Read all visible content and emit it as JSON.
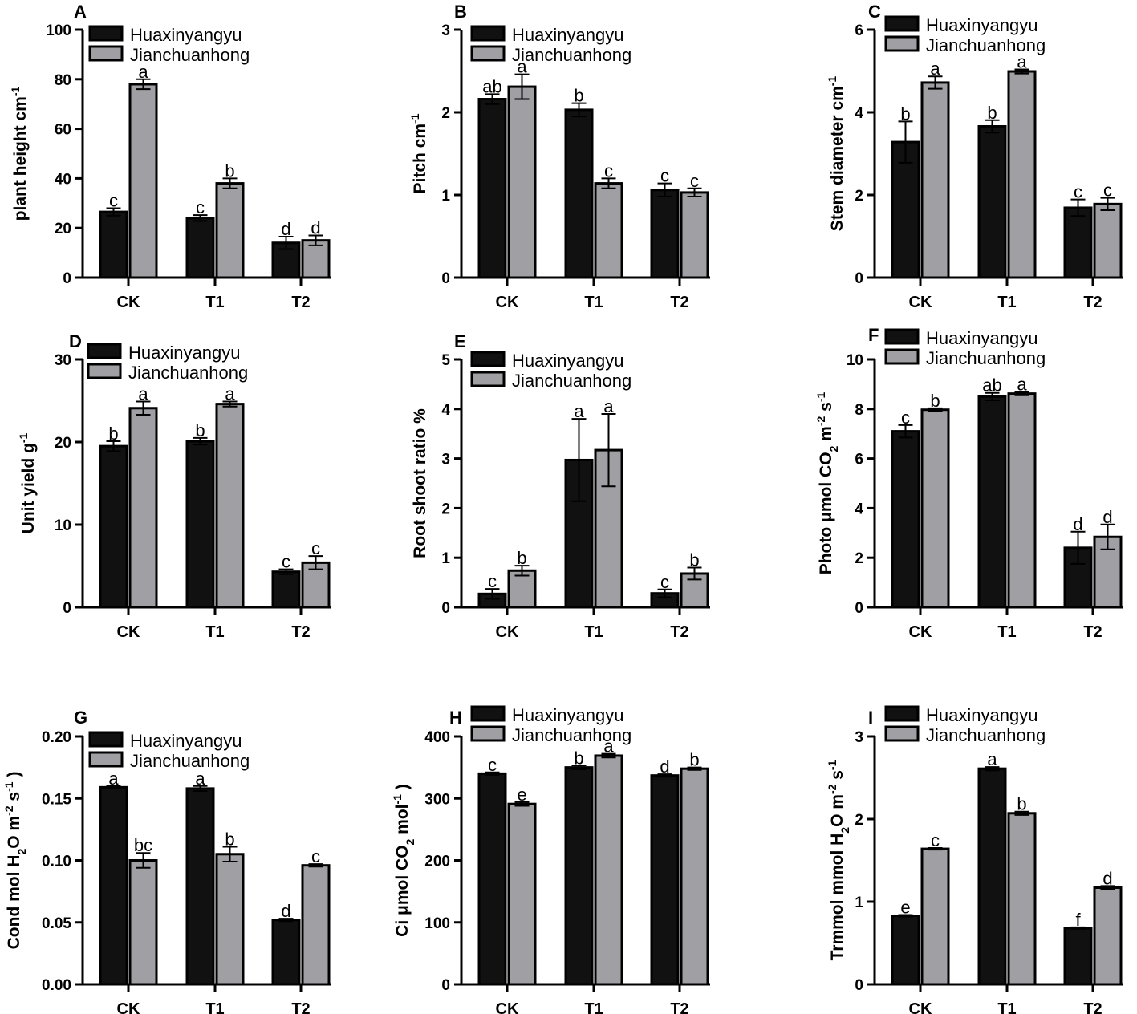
{
  "chart_data": [
    {
      "panel": "A",
      "type": "bar",
      "ylabel": "plant height cm",
      "ylabel_sup": "-1",
      "ylim": [
        0,
        100
      ],
      "yticks": [
        "0",
        "20",
        "40",
        "60",
        "80",
        "100"
      ],
      "categories": [
        "CK",
        "T1",
        "T2"
      ],
      "legend": [
        "Huaxinyangyu",
        "Jianchuanhong"
      ],
      "series": [
        {
          "name": "Huaxinyangyu",
          "values": [
            26.5,
            24,
            14
          ],
          "errors": [
            1.5,
            1.2,
            2.5
          ],
          "letters": [
            "c",
            "c",
            "d"
          ]
        },
        {
          "name": "Jianchuanhong",
          "values": [
            78,
            38,
            15
          ],
          "errors": [
            2,
            2,
            2
          ],
          "letters": [
            "a",
            "b",
            "d"
          ]
        }
      ]
    },
    {
      "panel": "B",
      "type": "bar",
      "ylabel": "Pitch cm",
      "ylabel_sup": "-1",
      "ylim": [
        0,
        3
      ],
      "yticks": [
        "0",
        "1",
        "2",
        "3"
      ],
      "categories": [
        "CK",
        "T1",
        "T2"
      ],
      "legend": [
        "Huaxinyangyu",
        "Jianchuanhong"
      ],
      "series": [
        {
          "name": "Huaxinyangyu",
          "values": [
            2.16,
            2.03,
            1.06
          ],
          "errors": [
            0.06,
            0.08,
            0.08
          ],
          "letters": [
            "ab",
            "b",
            "c"
          ]
        },
        {
          "name": "Jianchuanhong",
          "values": [
            2.31,
            1.14,
            1.03
          ],
          "errors": [
            0.15,
            0.06,
            0.05
          ],
          "letters": [
            "a",
            "c",
            "c"
          ]
        }
      ]
    },
    {
      "panel": "C",
      "type": "bar",
      "ylabel": "Stem diameter cm",
      "ylabel_sup": "-1",
      "ylim": [
        0,
        6
      ],
      "yticks": [
        "0",
        "2",
        "4",
        "6"
      ],
      "categories": [
        "CK",
        "T1",
        "T2"
      ],
      "legend": [
        "Huaxinyangyu",
        "Jianchuanhong"
      ],
      "series": [
        {
          "name": "Huaxinyangyu",
          "values": [
            3.28,
            3.66,
            1.69
          ],
          "errors": [
            0.5,
            0.15,
            0.2
          ],
          "letters": [
            "b",
            "b",
            "c"
          ]
        },
        {
          "name": "Jianchuanhong",
          "values": [
            4.72,
            4.99,
            1.78
          ],
          "errors": [
            0.15,
            0.05,
            0.15
          ],
          "letters": [
            "a",
            "a",
            "c"
          ]
        }
      ]
    },
    {
      "panel": "D",
      "type": "bar",
      "ylabel": "Unit yield g",
      "ylabel_sup": "-1",
      "ylim": [
        0,
        30
      ],
      "yticks": [
        "0",
        "10",
        "20",
        "30"
      ],
      "categories": [
        "CK",
        "T1",
        "T2"
      ],
      "legend": [
        "Huaxinyangyu",
        "Jianchuanhong"
      ],
      "series": [
        {
          "name": "Huaxinyangyu",
          "values": [
            19.5,
            20.1,
            4.3
          ],
          "errors": [
            0.6,
            0.4,
            0.3
          ],
          "letters": [
            "b",
            "b",
            "c"
          ]
        },
        {
          "name": "Jianchuanhong",
          "values": [
            24.1,
            24.6,
            5.4
          ],
          "errors": [
            0.8,
            0.3,
            0.8
          ],
          "letters": [
            "a",
            "a",
            "c"
          ]
        }
      ]
    },
    {
      "panel": "E",
      "type": "bar",
      "ylabel": "Root shoot ratio %",
      "ylabel_sup": "",
      "ylim": [
        0,
        5
      ],
      "yticks": [
        "0",
        "1",
        "2",
        "3",
        "4",
        "5"
      ],
      "categories": [
        "CK",
        "T1",
        "T2"
      ],
      "legend": [
        "Huaxinyangyu",
        "Jianchuanhong"
      ],
      "series": [
        {
          "name": "Huaxinyangyu",
          "values": [
            0.27,
            2.97,
            0.28
          ],
          "errors": [
            0.1,
            0.83,
            0.08
          ],
          "letters": [
            "c",
            "a",
            "c"
          ]
        },
        {
          "name": "Jianchuanhong",
          "values": [
            0.74,
            3.17,
            0.68
          ],
          "errors": [
            0.1,
            0.73,
            0.12
          ],
          "letters": [
            "b",
            "a",
            "b"
          ]
        }
      ]
    },
    {
      "panel": "F",
      "type": "bar",
      "ylabel": "Photo μmol CO",
      "ylabel_sub": "2",
      "ylabel_tail": " m",
      "ylabel_sup2": "-2",
      "ylabel_tail2": " s",
      "ylabel_sup3": "-1",
      "ylim": [
        0,
        10
      ],
      "yticks": [
        "0",
        "2",
        "4",
        "6",
        "8",
        "10"
      ],
      "categories": [
        "CK",
        "T1",
        "T2"
      ],
      "legend": [
        "Huaxinyangyu",
        "Jianchuanhong"
      ],
      "series": [
        {
          "name": "Huaxinyangyu",
          "values": [
            7.1,
            8.5,
            2.4
          ],
          "errors": [
            0.25,
            0.15,
            0.65
          ],
          "letters": [
            "c",
            "ab",
            "d"
          ]
        },
        {
          "name": "Jianchuanhong",
          "values": [
            7.97,
            8.62,
            2.84
          ],
          "errors": [
            0.06,
            0.07,
            0.5
          ],
          "letters": [
            "b",
            "a",
            "d"
          ]
        }
      ]
    },
    {
      "panel": "G",
      "type": "bar",
      "ylabel": "Cond mol H",
      "ylabel_sub": "2",
      "ylabel_tail": "O m",
      "ylabel_sup2": "-2",
      "ylabel_tail2": " s",
      "ylabel_sup3": "-1",
      "ylabel_end": " )",
      "ylim": [
        0,
        0.2
      ],
      "yticks": [
        "0.00",
        "0.05",
        "0.10",
        "0.15",
        "0.20"
      ],
      "categories": [
        "CK",
        "T1",
        "T2"
      ],
      "legend": [
        "Huaxinyangyu",
        "Jianchuanhong"
      ],
      "series": [
        {
          "name": "Huaxinyangyu",
          "values": [
            0.159,
            0.158,
            0.052
          ],
          "errors": [
            0.001,
            0.002,
            0.001
          ],
          "letters": [
            "a",
            "a",
            "d"
          ]
        },
        {
          "name": "Jianchuanhong",
          "values": [
            0.1,
            0.105,
            0.096
          ],
          "errors": [
            0.006,
            0.006,
            0.001
          ],
          "letters": [
            "bc",
            "b",
            "c"
          ]
        }
      ]
    },
    {
      "panel": "H",
      "type": "bar",
      "ylabel": "Ci μmol CO",
      "ylabel_sub": "2",
      "ylabel_tail": " mol",
      "ylabel_sup2": "-1",
      "ylabel_tail2": " )",
      "ylim": [
        0,
        400
      ],
      "yticks": [
        "0",
        "100",
        "200",
        "300",
        "400"
      ],
      "categories": [
        "CK",
        "T1",
        "T2"
      ],
      "legend": [
        "Huaxinyangyu",
        "Jianchuanhong"
      ],
      "series": [
        {
          "name": "Huaxinyangyu",
          "values": [
            340,
            350,
            337
          ],
          "errors": [
            2,
            3,
            2
          ],
          "letters": [
            "c",
            "b",
            "d"
          ]
        },
        {
          "name": "Jianchuanhong",
          "values": [
            291,
            369,
            348
          ],
          "errors": [
            3,
            3,
            2
          ],
          "letters": [
            "e",
            "a",
            "b"
          ]
        }
      ]
    },
    {
      "panel": "I",
      "type": "bar",
      "ylabel": "Trmmol mmol H",
      "ylabel_sub": "2",
      "ylabel_tail": "O m",
      "ylabel_sup2": "-2",
      "ylabel_tail2": " s",
      "ylabel_sup3": "-1",
      "ylim": [
        0,
        3
      ],
      "yticks": [
        "0",
        "1",
        "2",
        "3"
      ],
      "categories": [
        "CK",
        "T1",
        "T2"
      ],
      "legend": [
        "Huaxinyangyu",
        "Jianchuanhong"
      ],
      "series": [
        {
          "name": "Huaxinyangyu",
          "values": [
            0.83,
            2.61,
            0.68
          ],
          "errors": [
            0.01,
            0.02,
            0.01
          ],
          "letters": [
            "e",
            "a",
            "f"
          ]
        },
        {
          "name": "Jianchuanhong",
          "values": [
            1.64,
            2.07,
            1.17
          ],
          "errors": [
            0.01,
            0.02,
            0.02
          ],
          "letters": [
            "c",
            "b",
            "d"
          ]
        }
      ]
    }
  ],
  "colors": {
    "series1": "#111111",
    "series2": "#a0a0a4",
    "axis": "#000000"
  }
}
